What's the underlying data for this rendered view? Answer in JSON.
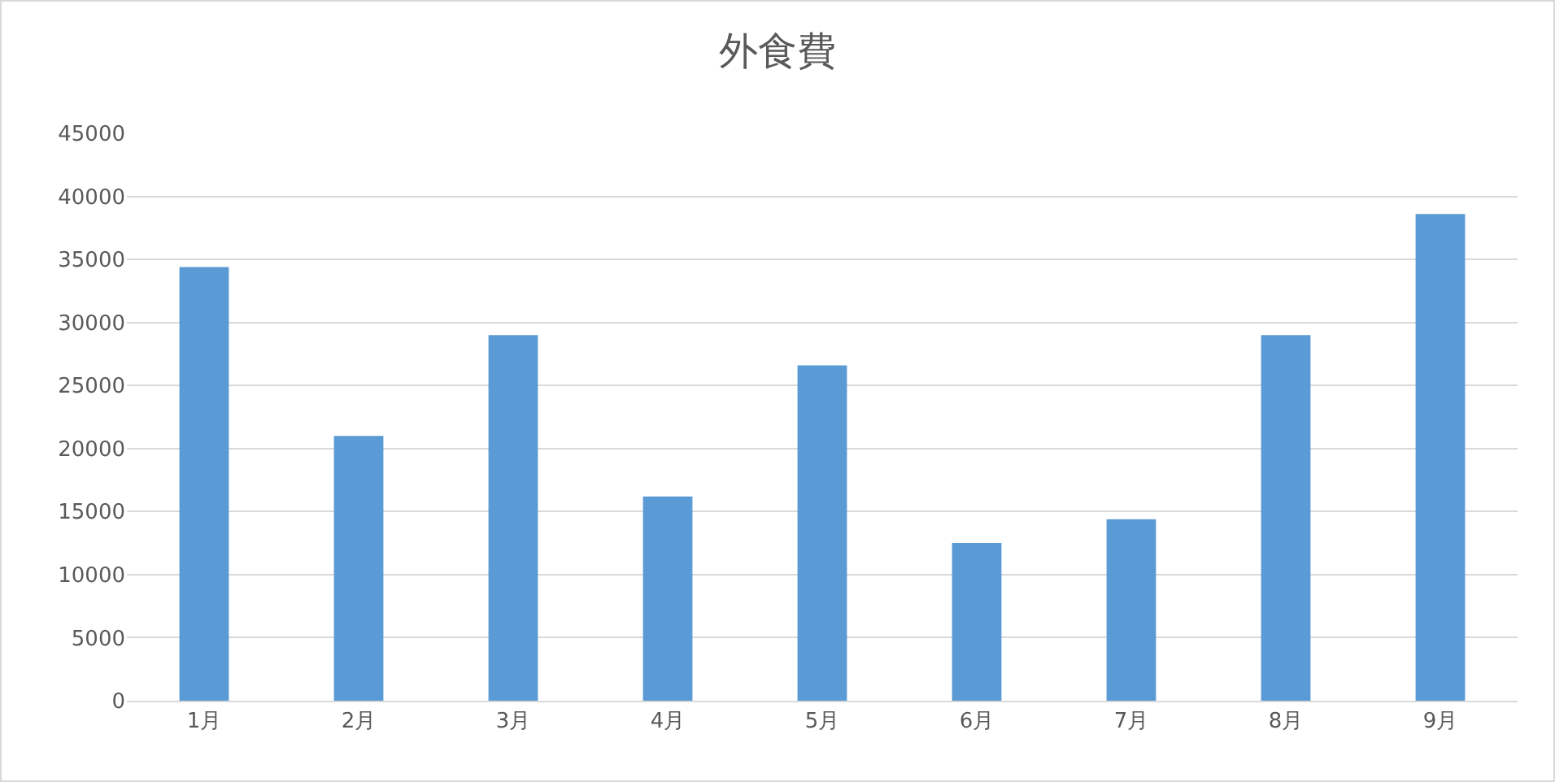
{
  "chart_data": {
    "type": "bar",
    "title": "外食費",
    "categories": [
      "1月",
      "2月",
      "3月",
      "4月",
      "5月",
      "6月",
      "7月",
      "8月",
      "9月"
    ],
    "values": [
      34400,
      21000,
      29000,
      16200,
      26600,
      12500,
      14400,
      29000,
      38600
    ],
    "color": "#5b9bd5",
    "ylim": [
      0,
      45000
    ],
    "yticks": [
      0,
      5000,
      10000,
      15000,
      20000,
      25000,
      30000,
      35000,
      40000,
      45000
    ],
    "grid": "y",
    "legend": false
  }
}
